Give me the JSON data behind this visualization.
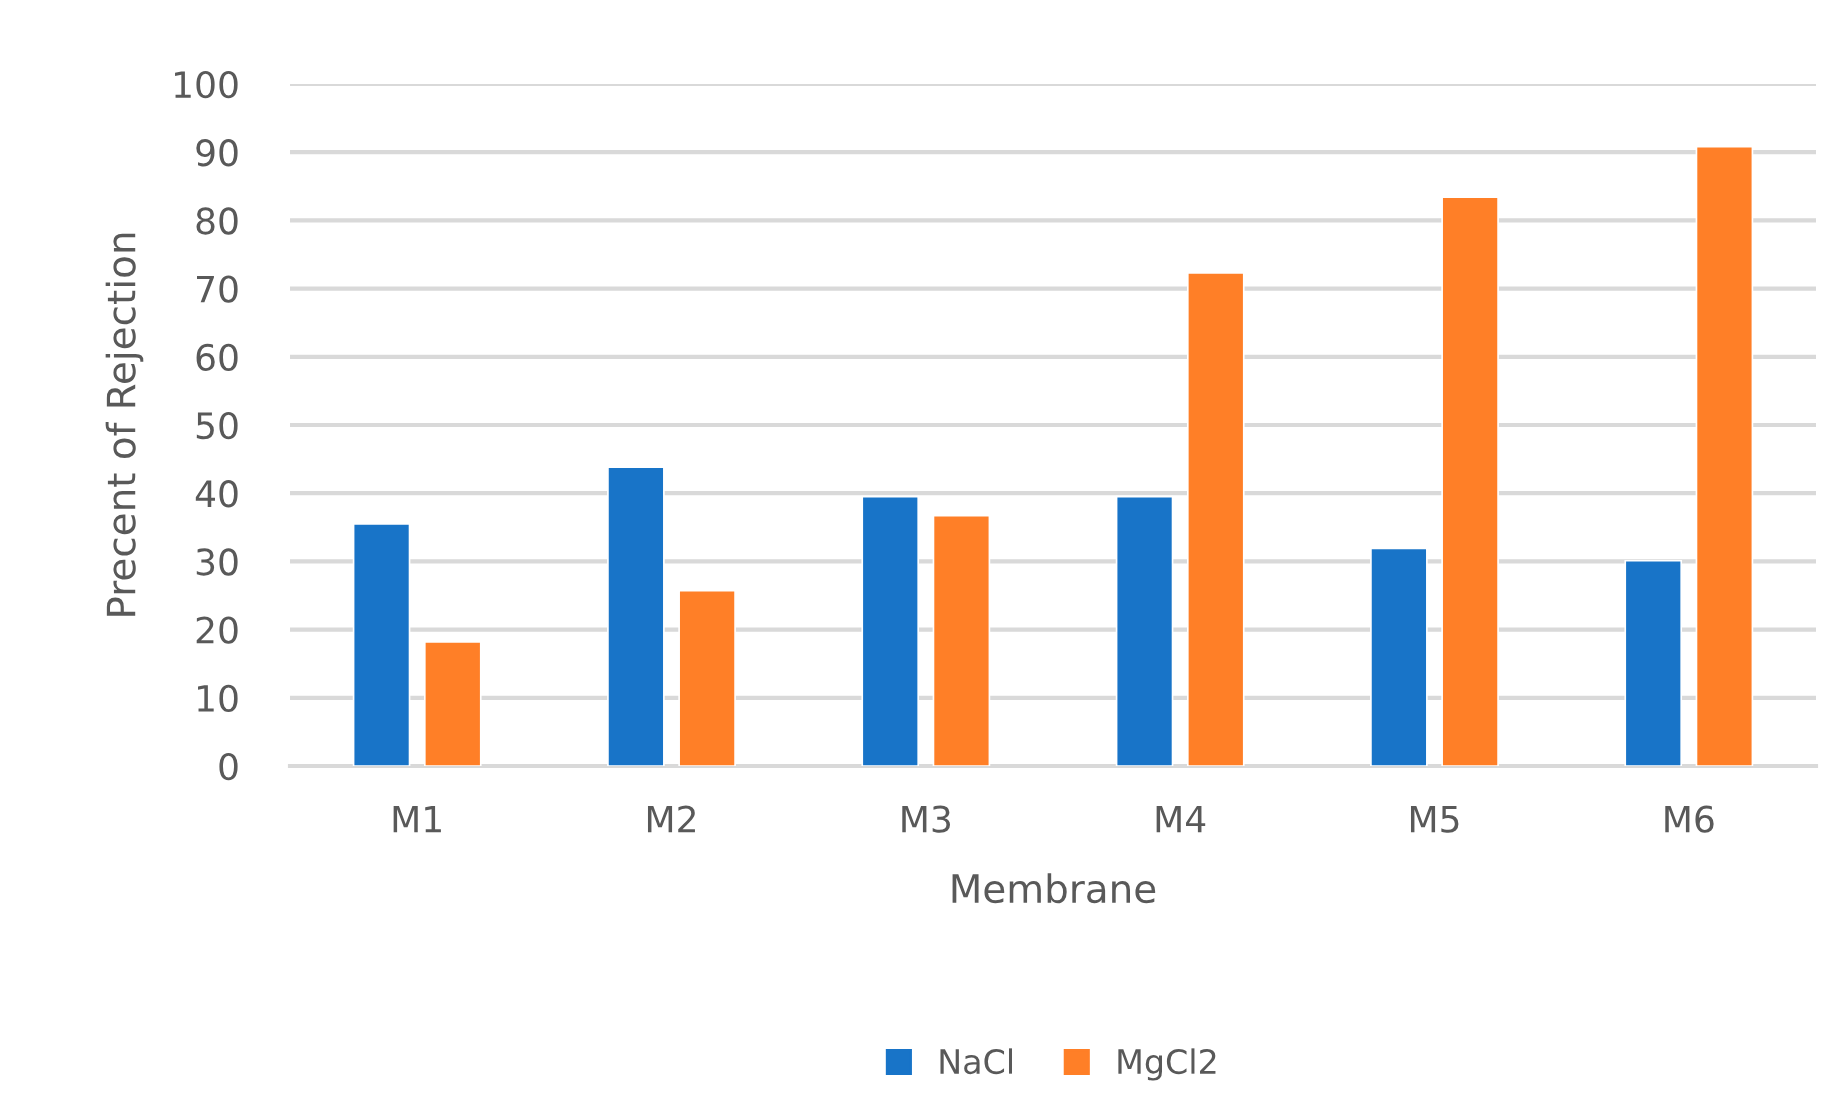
{
  "chart_data": {
    "type": "bar",
    "xlabel": "Membrane",
    "ylabel": "Precent of Rejection",
    "categories": [
      "M1",
      "M2",
      "M3",
      "M4",
      "M5",
      "M6"
    ],
    "series": [
      {
        "name": "NaCl",
        "color": "#1874c8",
        "values": [
          35.5,
          43.8,
          39.5,
          39.5,
          31.9,
          30.1
        ]
      },
      {
        "name": "MgCl2",
        "color": "#ff7f27",
        "values": [
          18.2,
          25.7,
          36.7,
          72.3,
          83.4,
          90.8
        ]
      }
    ],
    "ylim": [
      0,
      100
    ],
    "yticks": [
      0,
      10,
      20,
      30,
      40,
      50,
      60,
      70,
      80,
      90,
      100
    ],
    "grid": "y",
    "legend": "bottom"
  }
}
